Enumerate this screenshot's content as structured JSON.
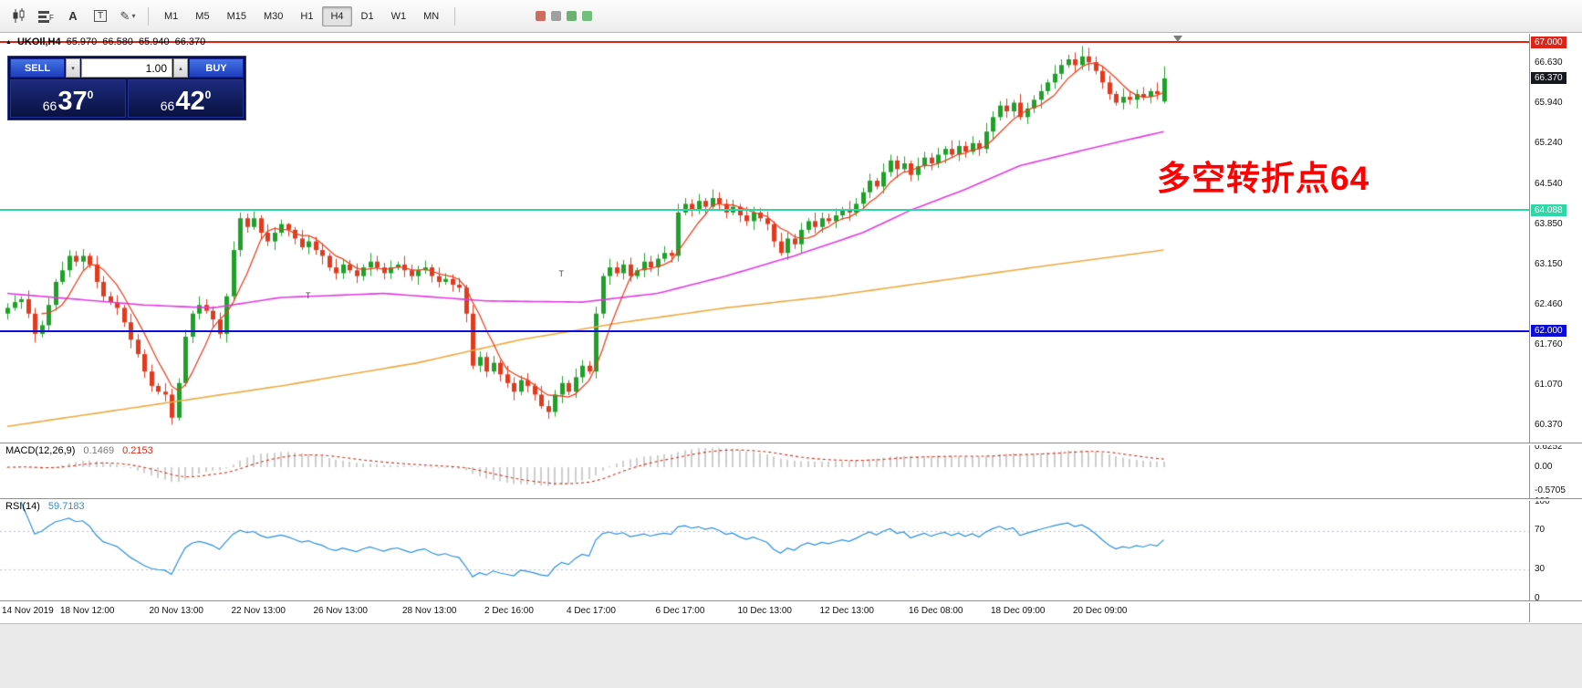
{
  "toolbar": {
    "text_tool_label": "A",
    "template_tool_label": "T",
    "timeframes": [
      "M1",
      "M5",
      "M15",
      "M30",
      "H1",
      "H4",
      "D1",
      "W1",
      "MN"
    ],
    "active_timeframe": "H4",
    "misc_icon_colors": [
      "#c64a3a",
      "#8a8a8a",
      "#4aa052",
      "#54b05c"
    ]
  },
  "chart": {
    "header": {
      "symbol": "UKOIl,H4",
      "open": "65.970",
      "high": "66.580",
      "low": "65.940",
      "close": "66.370"
    },
    "annotation": "多空转折点64",
    "annotation_color": "#ff0000",
    "hlines": [
      {
        "price": 67.0,
        "label": "67.000",
        "color": "#dd2417"
      },
      {
        "price": 64.088,
        "label": "64.088",
        "color": "#2fd6a6"
      },
      {
        "price": 62.0,
        "label": "62.000",
        "color": "#0b0bdc"
      }
    ],
    "current_price": {
      "price": 66.37,
      "label": "66.370",
      "color": "#15181f"
    },
    "axis_plain_ticks": [
      {
        "label": "66.630",
        "price": 66.63
      },
      {
        "label": "65.940",
        "price": 65.94
      },
      {
        "label": "65.240",
        "price": 65.24
      },
      {
        "label": "64.540",
        "price": 64.54
      },
      {
        "label": "63.850",
        "price": 63.85
      },
      {
        "label": "63.150",
        "price": 63.15
      },
      {
        "label": "62.460",
        "price": 62.46
      },
      {
        "label": "61.760",
        "price": 61.76
      },
      {
        "label": "61.070",
        "price": 61.07
      },
      {
        "label": "60.370",
        "price": 60.37
      }
    ],
    "markers": [
      {
        "bar": 44,
        "price": 62.62,
        "glyph": "T"
      },
      {
        "bar": 81,
        "price": 63.0,
        "glyph": "T"
      }
    ]
  },
  "trade_panel": {
    "sell_label": "SELL",
    "buy_label": "BUY",
    "volume": "1.00",
    "sell_price": {
      "small": "66",
      "big": "37",
      "sup": "0"
    },
    "buy_price": {
      "small": "66",
      "big": "42",
      "sup": "0"
    }
  },
  "macd_panel": {
    "label": "MACD(12,26,9)",
    "value_main": "0.1469",
    "value_signal": "0.2153",
    "scale": [
      "0.6252",
      "0.00",
      "-0.5705"
    ]
  },
  "rsi_panel": {
    "label": "RSI(14)",
    "value": "59.7183",
    "scale": [
      "100",
      "70",
      "30",
      "0"
    ]
  },
  "time_axis": {
    "labels": [
      {
        "text": "14 Nov 2019",
        "bar": 0
      },
      {
        "text": "18 Nov 12:00",
        "bar": 12
      },
      {
        "text": "20 Nov 13:00",
        "bar": 25
      },
      {
        "text": "22 Nov 13:00",
        "bar": 37
      },
      {
        "text": "26 Nov 13:00",
        "bar": 49
      },
      {
        "text": "28 Nov 13:00",
        "bar": 62
      },
      {
        "text": "2 Dec 16:00",
        "bar": 74
      },
      {
        "text": "4 Dec 17:00",
        "bar": 86
      },
      {
        "text": "6 Dec 17:00",
        "bar": 99
      },
      {
        "text": "10 Dec 13:00",
        "bar": 111
      },
      {
        "text": "12 Dec 13:00",
        "bar": 123
      },
      {
        "text": "16 Dec 08:00",
        "bar": 136
      },
      {
        "text": "18 Dec 09:00",
        "bar": 148
      },
      {
        "text": "20 Dec 09:00",
        "bar": 160
      }
    ]
  },
  "chart_data": {
    "type": "candlestick",
    "symbol": "UKOIl",
    "timeframe": "H4",
    "price_axis": {
      "min": 60.37,
      "max": 67.0
    },
    "colors": {
      "up": "#1fa02b",
      "down": "#e23a1e",
      "ma_fast": "#ea4222",
      "ma_mid": "#e23ae2",
      "ma_slow": "#eca93f",
      "macd_hist": "#bfbfbf",
      "macd_signal": "#d02f1f",
      "rsi": "#2a8fdd"
    },
    "candles": [
      [
        62.3,
        62.48,
        62.2,
        62.4
      ],
      [
        62.4,
        62.62,
        62.35,
        62.5
      ],
      [
        62.5,
        62.6,
        62.38,
        62.55
      ],
      [
        62.55,
        62.7,
        62.22,
        62.3
      ],
      [
        62.3,
        62.4,
        61.8,
        61.95
      ],
      [
        61.95,
        62.18,
        61.89,
        62.1
      ],
      [
        62.1,
        62.57,
        61.99,
        62.45
      ],
      [
        62.45,
        62.9,
        62.35,
        62.85
      ],
      [
        62.85,
        63.2,
        62.8,
        63.05
      ],
      [
        63.05,
        63.4,
        62.93,
        63.3
      ],
      [
        63.3,
        63.38,
        63.12,
        63.2
      ],
      [
        63.2,
        63.42,
        63.05,
        63.3
      ],
      [
        63.3,
        63.35,
        63.09,
        63.15
      ],
      [
        63.15,
        63.3,
        62.74,
        62.85
      ],
      [
        62.85,
        62.95,
        62.5,
        62.6
      ],
      [
        62.6,
        62.68,
        62.45,
        62.5
      ],
      [
        62.5,
        62.62,
        62.28,
        62.4
      ],
      [
        62.4,
        62.45,
        62.07,
        62.15
      ],
      [
        62.15,
        62.3,
        61.7,
        61.85
      ],
      [
        61.85,
        61.95,
        61.54,
        61.6
      ],
      [
        61.6,
        61.68,
        61.19,
        61.3
      ],
      [
        61.3,
        61.42,
        60.95,
        61.05
      ],
      [
        61.05,
        61.1,
        60.9,
        60.95
      ],
      [
        60.95,
        61.1,
        60.78,
        60.9
      ],
      [
        60.9,
        61.0,
        60.38,
        60.5
      ],
      [
        60.5,
        61.18,
        60.45,
        61.1
      ],
      [
        61.1,
        62.02,
        61.04,
        61.9
      ],
      [
        61.9,
        62.35,
        61.79,
        62.3
      ],
      [
        62.3,
        62.6,
        62.2,
        62.45
      ],
      [
        62.45,
        62.55,
        62.3,
        62.35
      ],
      [
        62.35,
        62.43,
        62.08,
        62.2
      ],
      [
        62.2,
        62.32,
        61.87,
        61.95
      ],
      [
        61.95,
        62.65,
        61.8,
        62.6
      ],
      [
        62.6,
        63.55,
        62.54,
        63.4
      ],
      [
        63.4,
        64.05,
        63.29,
        63.95
      ],
      [
        63.95,
        64.03,
        63.7,
        63.8
      ],
      [
        63.8,
        64.07,
        63.75,
        63.95
      ],
      [
        63.95,
        64.0,
        63.58,
        63.7
      ],
      [
        63.7,
        63.85,
        63.47,
        63.55
      ],
      [
        63.55,
        63.8,
        63.4,
        63.7
      ],
      [
        63.7,
        63.93,
        63.64,
        63.85
      ],
      [
        63.85,
        63.87,
        63.64,
        63.75
      ],
      [
        63.75,
        63.8,
        63.5,
        63.6
      ],
      [
        63.6,
        63.75,
        63.4,
        63.45
      ],
      [
        63.45,
        63.65,
        63.33,
        63.55
      ],
      [
        63.55,
        63.63,
        63.32,
        63.4
      ],
      [
        63.4,
        63.52,
        63.15,
        63.3
      ],
      [
        63.3,
        63.35,
        63.04,
        63.1
      ],
      [
        63.1,
        63.25,
        62.89,
        63.0
      ],
      [
        63.0,
        63.25,
        62.9,
        63.15
      ],
      [
        63.15,
        63.23,
        63.0,
        63.05
      ],
      [
        63.05,
        63.17,
        62.83,
        62.95
      ],
      [
        62.95,
        63.15,
        62.87,
        63.1
      ],
      [
        63.1,
        63.35,
        62.95,
        63.2
      ],
      [
        63.2,
        63.3,
        63.04,
        63.1
      ],
      [
        63.1,
        63.18,
        62.89,
        63.0
      ],
      [
        63.0,
        63.22,
        62.9,
        63.1
      ],
      [
        63.1,
        63.2,
        63.05,
        63.15
      ],
      [
        63.15,
        63.3,
        62.93,
        63.05
      ],
      [
        63.05,
        63.15,
        62.87,
        62.95
      ],
      [
        62.95,
        63.13,
        62.8,
        63.05
      ],
      [
        63.05,
        63.22,
        62.99,
        63.1
      ],
      [
        63.1,
        63.15,
        62.84,
        62.95
      ],
      [
        62.95,
        63.1,
        62.75,
        62.85
      ],
      [
        62.85,
        63.0,
        62.8,
        62.9
      ],
      [
        62.9,
        62.98,
        62.68,
        62.8
      ],
      [
        62.8,
        62.92,
        62.67,
        62.75
      ],
      [
        62.75,
        62.8,
        62.15,
        62.3
      ],
      [
        62.3,
        62.45,
        61.34,
        61.4
      ],
      [
        61.4,
        61.65,
        61.29,
        61.55
      ],
      [
        61.55,
        61.63,
        61.2,
        61.3
      ],
      [
        61.3,
        61.57,
        61.25,
        61.45
      ],
      [
        61.45,
        61.5,
        61.13,
        61.25
      ],
      [
        61.25,
        61.4,
        61.02,
        61.1
      ],
      [
        61.1,
        61.2,
        60.8,
        60.95
      ],
      [
        60.95,
        61.23,
        60.89,
        61.15
      ],
      [
        61.15,
        61.27,
        60.94,
        61.05
      ],
      [
        61.05,
        61.1,
        60.8,
        60.9
      ],
      [
        60.9,
        61.05,
        60.65,
        60.7
      ],
      [
        60.7,
        60.8,
        60.48,
        60.6
      ],
      [
        60.6,
        60.98,
        60.52,
        60.9
      ],
      [
        60.9,
        61.22,
        60.75,
        61.1
      ],
      [
        61.1,
        61.15,
        60.89,
        60.95
      ],
      [
        60.95,
        61.35,
        60.84,
        61.2
      ],
      [
        61.2,
        61.5,
        61.1,
        61.4
      ],
      [
        61.4,
        61.48,
        61.25,
        61.3
      ],
      [
        61.3,
        62.42,
        61.18,
        62.3
      ],
      [
        62.3,
        63.0,
        62.22,
        62.95
      ],
      [
        62.95,
        63.25,
        62.8,
        63.1
      ],
      [
        63.1,
        63.2,
        62.94,
        63.0
      ],
      [
        63.0,
        63.23,
        62.89,
        63.15
      ],
      [
        63.15,
        63.27,
        62.85,
        62.95
      ],
      [
        62.95,
        63.1,
        62.9,
        63.05
      ],
      [
        63.05,
        63.35,
        62.93,
        63.2
      ],
      [
        63.2,
        63.3,
        63.02,
        63.1
      ],
      [
        63.1,
        63.33,
        62.95,
        63.25
      ],
      [
        63.25,
        63.47,
        63.19,
        63.35
      ],
      [
        63.35,
        63.4,
        63.19,
        63.3
      ],
      [
        63.3,
        64.2,
        63.2,
        64.05
      ],
      [
        64.05,
        64.3,
        64.0,
        64.2
      ],
      [
        64.2,
        64.28,
        63.98,
        64.1
      ],
      [
        64.1,
        64.37,
        64.02,
        64.25
      ],
      [
        64.25,
        64.3,
        64.0,
        64.15
      ],
      [
        64.15,
        64.45,
        64.09,
        64.3
      ],
      [
        64.3,
        64.4,
        64.09,
        64.2
      ],
      [
        64.2,
        64.28,
        63.95,
        64.05
      ],
      [
        64.05,
        64.27,
        64.0,
        64.15
      ],
      [
        64.15,
        64.2,
        63.88,
        64.0
      ],
      [
        64.0,
        64.15,
        63.82,
        63.9
      ],
      [
        63.9,
        64.15,
        63.75,
        64.05
      ],
      [
        64.05,
        64.13,
        63.89,
        63.95
      ],
      [
        63.95,
        64.07,
        63.74,
        63.85
      ],
      [
        63.85,
        63.9,
        63.45,
        63.55
      ],
      [
        63.55,
        63.7,
        63.3,
        63.35
      ],
      [
        63.35,
        63.7,
        63.23,
        63.6
      ],
      [
        63.6,
        63.68,
        63.42,
        63.5
      ],
      [
        63.5,
        63.87,
        63.35,
        63.75
      ],
      [
        63.75,
        63.95,
        63.69,
        63.9
      ],
      [
        63.9,
        64.05,
        63.69,
        63.8
      ],
      [
        63.8,
        64.05,
        63.7,
        63.95
      ],
      [
        63.95,
        64.03,
        63.85,
        63.9
      ],
      [
        63.9,
        64.12,
        63.78,
        64.0
      ],
      [
        64.0,
        64.15,
        63.92,
        64.1
      ],
      [
        64.1,
        64.25,
        63.9,
        64.05
      ],
      [
        64.05,
        64.3,
        63.99,
        64.2
      ],
      [
        64.2,
        64.48,
        64.09,
        64.4
      ],
      [
        64.4,
        64.72,
        64.3,
        64.6
      ],
      [
        64.6,
        64.65,
        64.45,
        64.5
      ],
      [
        64.5,
        64.9,
        64.38,
        64.75
      ],
      [
        64.75,
        65.05,
        64.67,
        64.95
      ],
      [
        64.95,
        65.03,
        64.65,
        64.8
      ],
      [
        64.8,
        65.02,
        64.74,
        64.9
      ],
      [
        64.9,
        64.95,
        64.59,
        64.7
      ],
      [
        64.7,
        65.0,
        64.6,
        64.85
      ],
      [
        64.85,
        65.1,
        64.8,
        65.0
      ],
      [
        65.0,
        65.08,
        64.78,
        64.9
      ],
      [
        64.9,
        65.17,
        64.82,
        65.05
      ],
      [
        65.05,
        65.2,
        64.9,
        65.15
      ],
      [
        65.15,
        65.3,
        64.99,
        65.05
      ],
      [
        65.05,
        65.3,
        64.94,
        65.2
      ],
      [
        65.2,
        65.28,
        65.0,
        65.1
      ],
      [
        65.1,
        65.37,
        65.05,
        65.25
      ],
      [
        65.25,
        65.3,
        65.03,
        65.15
      ],
      [
        65.15,
        65.6,
        65.07,
        65.45
      ],
      [
        65.45,
        65.8,
        65.3,
        65.7
      ],
      [
        65.7,
        65.98,
        65.64,
        65.9
      ],
      [
        65.9,
        66.02,
        65.69,
        65.8
      ],
      [
        65.8,
        66.0,
        65.7,
        65.95
      ],
      [
        65.95,
        66.1,
        65.65,
        65.7
      ],
      [
        65.7,
        65.95,
        65.58,
        65.85
      ],
      [
        65.85,
        66.08,
        65.77,
        66.0
      ],
      [
        66.0,
        66.27,
        65.85,
        66.15
      ],
      [
        66.15,
        66.35,
        66.09,
        66.3
      ],
      [
        66.3,
        66.6,
        66.19,
        66.45
      ],
      [
        66.45,
        66.7,
        66.35,
        66.6
      ],
      [
        66.6,
        66.78,
        66.55,
        66.7
      ],
      [
        66.7,
        66.82,
        66.48,
        66.6
      ],
      [
        66.6,
        66.93,
        66.52,
        66.75
      ],
      [
        66.75,
        66.9,
        66.5,
        66.65
      ],
      [
        66.65,
        66.75,
        66.44,
        66.5
      ],
      [
        66.5,
        66.58,
        66.19,
        66.3
      ],
      [
        66.3,
        66.42,
        66.0,
        66.1
      ],
      [
        66.1,
        66.15,
        65.9,
        65.95
      ],
      [
        65.95,
        66.2,
        65.83,
        66.05
      ],
      [
        66.05,
        66.15,
        65.92,
        66.0
      ],
      [
        66.0,
        66.18,
        65.85,
        66.1
      ],
      [
        66.1,
        66.22,
        65.99,
        66.05
      ],
      [
        66.05,
        66.2,
        65.94,
        66.15
      ],
      [
        66.15,
        66.3,
        66.0,
        66.1
      ],
      [
        65.97,
        66.58,
        65.94,
        66.37
      ]
    ],
    "ma_mid_points": [
      [
        0,
        62.65
      ],
      [
        20,
        62.45
      ],
      [
        30,
        62.4
      ],
      [
        40,
        62.58
      ],
      [
        55,
        62.65
      ],
      [
        70,
        62.52
      ],
      [
        84,
        62.5
      ],
      [
        95,
        62.65
      ],
      [
        105,
        62.95
      ],
      [
        115,
        63.3
      ],
      [
        125,
        63.7
      ],
      [
        132,
        64.09
      ],
      [
        140,
        64.45
      ],
      [
        148,
        64.86
      ],
      [
        158,
        65.15
      ],
      [
        169,
        65.45
      ]
    ],
    "ma_slow_points": [
      [
        0,
        60.35
      ],
      [
        20,
        60.7
      ],
      [
        40,
        61.05
      ],
      [
        60,
        61.45
      ],
      [
        75,
        61.85
      ],
      [
        90,
        62.15
      ],
      [
        105,
        62.4
      ],
      [
        120,
        62.6
      ],
      [
        135,
        62.85
      ],
      [
        150,
        63.1
      ],
      [
        169,
        63.4
      ]
    ]
  }
}
